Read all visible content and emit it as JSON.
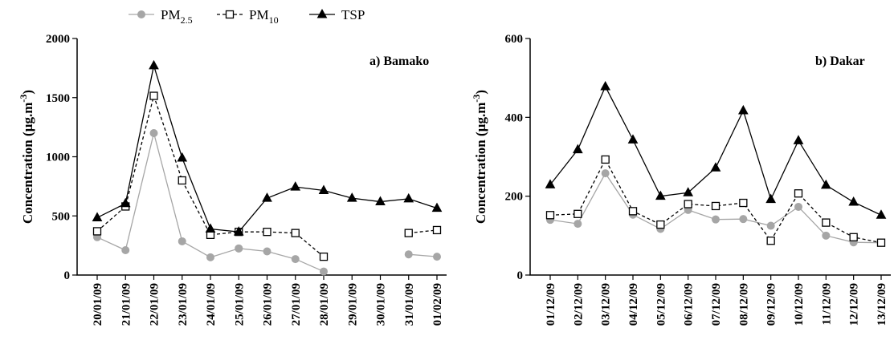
{
  "legend": [
    {
      "series": "PM2.5",
      "base": "PM",
      "sub": "2.5"
    },
    {
      "series": "PM10",
      "base": "PM",
      "sub": "10"
    },
    {
      "series": "TSP",
      "base": "TSP",
      "sub": ""
    }
  ],
  "styles": {
    "PM2.5": {
      "color": "#a6a6a6",
      "marker": "circle",
      "dash": ""
    },
    "PM10": {
      "color": "#000000",
      "marker": "square-open",
      "dash": "4,3"
    },
    "TSP": {
      "color": "#000000",
      "marker": "triangle",
      "dash": ""
    }
  },
  "chart_data": [
    {
      "type": "line",
      "panel_label": "a) Bamako",
      "ylabel": "Concentration (µg.m",
      "ylabel_sup": "-3",
      "ylabel_close": ")",
      "ylim": [
        0,
        2000
      ],
      "yticks": [
        0,
        500,
        1000,
        1500,
        2000
      ],
      "categories": [
        "20/01/09",
        "21/01/09",
        "22/01/09",
        "23/01/09",
        "24/01/09",
        "25/01/09",
        "26/01/09",
        "27/01/09",
        "28/01/09",
        "29/01/09",
        "30/01/09",
        "31/01/09",
        "01/02/09"
      ],
      "series": [
        {
          "name": "PM2.5",
          "values": [
            320,
            210,
            1200,
            285,
            150,
            225,
            null,
            null,
            null,
            null,
            null,
            null,
            null
          ]
        },
        {
          "name": "PM2.5",
          "values": [
            null,
            null,
            null,
            null,
            null,
            225,
            200,
            135,
            30,
            null,
            null,
            175,
            155
          ]
        },
        {
          "name": "PM10",
          "values": [
            370,
            580,
            1515,
            800,
            340,
            365,
            365,
            355,
            155,
            null,
            null,
            355,
            380
          ]
        },
        {
          "name": "TSP",
          "values": [
            485,
            605,
            1770,
            990,
            390,
            365,
            650,
            745,
            715,
            650,
            620,
            645,
            565
          ]
        }
      ]
    },
    {
      "type": "line",
      "panel_label": "b) Dakar",
      "ylabel": "Concentration (µg.m",
      "ylabel_sup": "-3",
      "ylabel_close": ")",
      "ylim": [
        0,
        600
      ],
      "yticks": [
        0,
        200,
        400,
        600
      ],
      "categories": [
        "01/12/09",
        "02/12/09",
        "03/12/09",
        "04/12/09",
        "05/12/09",
        "06/12/09",
        "07/12/09",
        "08/12/09",
        "09/12/09",
        "10/12/09",
        "11/12/09",
        "12/12/09",
        "13/12/09"
      ],
      "series": [
        {
          "name": "PM2.5",
          "values": [
            140,
            130,
            258,
            153,
            117,
            165,
            141,
            142,
            125,
            173,
            100,
            83,
            82
          ]
        },
        {
          "name": "PM10",
          "values": [
            152,
            155,
            293,
            162,
            128,
            180,
            175,
            183,
            87,
            207,
            133,
            96,
            82
          ]
        },
        {
          "name": "TSP",
          "values": [
            229,
            318,
            478,
            343,
            200,
            209,
            272,
            417,
            192,
            341,
            228,
            185,
            152
          ]
        }
      ]
    }
  ]
}
